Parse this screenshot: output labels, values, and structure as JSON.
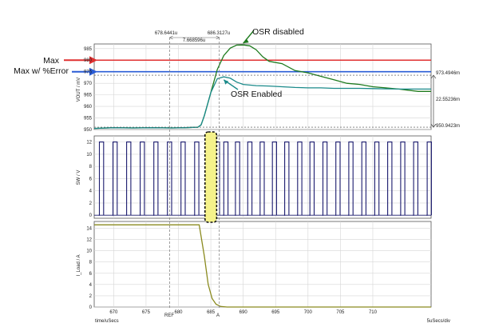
{
  "chart_data": [
    {
      "type": "line",
      "panel": "vout",
      "ylabel": "VOUT / mV",
      "ylim": [
        950,
        987
      ],
      "yticks": [
        950,
        955,
        960,
        965,
        970,
        975,
        980,
        985
      ],
      "grid": true,
      "series": [
        {
          "name": "OSR disabled",
          "color": "#1e7b1e",
          "x": [
            667,
            670,
            673,
            676,
            679,
            681,
            683,
            683.5,
            684,
            685,
            686,
            687,
            688,
            689,
            690,
            691,
            692,
            693,
            694,
            696,
            698,
            700,
            702,
            704,
            706,
            708,
            710,
            712,
            714,
            717,
            719
          ],
          "y": [
            950.5,
            950.8,
            950.7,
            950.8,
            950.7,
            950.8,
            951.0,
            952,
            956,
            966,
            976,
            982,
            985.2,
            986.5,
            986.6,
            986.2,
            984.5,
            981.5,
            979.5,
            978.5,
            975.5,
            974.5,
            973.0,
            971.5,
            970.0,
            969.5,
            968.5,
            968.0,
            967.5,
            966.5,
            966.5
          ]
        },
        {
          "name": "OSR Enabled",
          "color": "#1a8a8a",
          "x": [
            667,
            670,
            673,
            676,
            679,
            681,
            683,
            683.5,
            684,
            685,
            686,
            687,
            688,
            689,
            690,
            692,
            694,
            696,
            698,
            700,
            702,
            704,
            706,
            708,
            710,
            712,
            714,
            717,
            719
          ],
          "y": [
            950.5,
            950.8,
            950.7,
            950.8,
            950.7,
            950.8,
            951.0,
            952,
            956,
            966,
            972,
            972.8,
            972.2,
            970.5,
            969.5,
            969.0,
            968.8,
            968.5,
            968.2,
            968.0,
            968.0,
            967.8,
            967.8,
            967.8,
            967.7,
            967.6,
            967.5,
            967.5,
            967.5
          ]
        }
      ],
      "reference_lines": [
        {
          "label": "Max",
          "y": 980,
          "color": "#e03030"
        },
        {
          "label": "Max w/ %Error",
          "y": 975,
          "color": "#2a5cd6"
        }
      ],
      "annotations": [
        {
          "text": "OSR disabled",
          "x": 693,
          "y": 986.6
        },
        {
          "text": "OSR Enabled",
          "x": 687,
          "y": 972.2
        }
      ],
      "right_labels": [
        "973.4946m",
        "22.55236m",
        "950.9423m"
      ]
    },
    {
      "type": "line",
      "panel": "sw",
      "ylabel": "SW / V",
      "ylim": [
        -0.5,
        13
      ],
      "yticks": [
        0,
        2,
        4,
        6,
        8,
        10,
        12
      ],
      "grid": true,
      "series": [
        {
          "name": "SW",
          "color": "#1a1a6e",
          "pulse_high": 12,
          "pulse_low": 0,
          "pulse_start_x": [
            667.8,
            669.9,
            672.0,
            674.1,
            676.2,
            678.3,
            680.4,
            682.5,
            685.7,
            687.0,
            688.8,
            690.7,
            692.6,
            694.5,
            696.4,
            698.4,
            700.3,
            702.3,
            704.3,
            706.3,
            708.3,
            710.3,
            712.3,
            714.3,
            716.3,
            718.4
          ],
          "pulse_width_x": 0.65
        }
      ],
      "highlight_x": [
        684.1,
        685.9
      ]
    },
    {
      "type": "line",
      "panel": "iload",
      "ylabel": "I_Load / A",
      "ylim": [
        0,
        15.2
      ],
      "yticks": [
        0,
        2,
        4,
        6,
        8,
        10,
        12,
        14
      ],
      "grid": true,
      "series": [
        {
          "name": "I_Load",
          "color": "#8a8a1e",
          "x": [
            667,
            683.2,
            684,
            684.6,
            685.2,
            685.8,
            686.5,
            687.5,
            719
          ],
          "y": [
            14.6,
            14.6,
            9.0,
            4.0,
            1.5,
            0.5,
            0.1,
            0,
            0
          ]
        }
      ]
    }
  ],
  "x_axis": {
    "label": "time/uSecs",
    "ticks": [
      670,
      675,
      680,
      685,
      690,
      695,
      700,
      705,
      710
    ],
    "xlim": [
      667,
      719
    ],
    "right_label": "5uSecs/div"
  },
  "cursors": {
    "ref": {
      "label": "REF",
      "x": 678.6441,
      "readout": "678.6441u"
    },
    "a": {
      "label": "A",
      "x": 686.3127,
      "readout": "686.3127u"
    },
    "delta": "7.668596u"
  },
  "side_labels": {
    "max": "Max",
    "max_err": "Max w/ %Error"
  }
}
